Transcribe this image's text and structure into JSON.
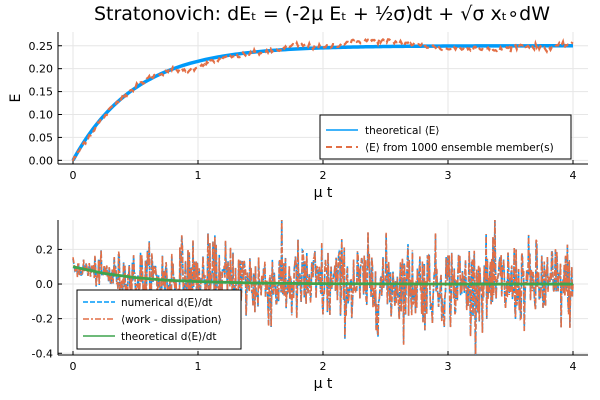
{
  "title": "Stratonovich: dEₜ = (-2μ Eₜ + ½σ)dt + √σ xₜ∘dW",
  "colors": {
    "blue": "#009af9",
    "orange": "#e26f46",
    "green": "#3da44d",
    "grid": "#e6e6e6"
  },
  "chart_data": [
    {
      "type": "line",
      "xlabel": "μ t",
      "ylabel": "E",
      "xlim": [
        -0.12,
        4.12
      ],
      "ylim": [
        -0.008,
        0.28
      ],
      "xticks": [
        0,
        1,
        2,
        3,
        4
      ],
      "xtick_labels": [
        "0",
        "1",
        "2",
        "3",
        "4"
      ],
      "yticks": [
        0,
        0.05,
        0.1,
        0.15,
        0.2,
        0.25
      ],
      "ytick_labels": [
        "0.00",
        "0.05",
        "0.10",
        "0.15",
        "0.20",
        "0.25"
      ],
      "grid": true,
      "legend_position": "bottom-right",
      "x": [
        0,
        0.1,
        0.2,
        0.3,
        0.4,
        0.5,
        0.6,
        0.7,
        0.8,
        0.9,
        1.0,
        1.2,
        1.4,
        1.6,
        1.8,
        2.0,
        2.2,
        2.4,
        2.6,
        2.8,
        3.0,
        3.2,
        3.4,
        3.6,
        3.8,
        4.0
      ],
      "series": [
        {
          "name": "theoretical ⟨E⟩",
          "style": "solid",
          "color": "#009af9",
          "values": [
            0,
            0.045,
            0.082,
            0.113,
            0.137,
            0.158,
            0.174,
            0.188,
            0.199,
            0.208,
            0.216,
            0.227,
            0.235,
            0.24,
            0.244,
            0.246,
            0.247,
            0.248,
            0.249,
            0.249,
            0.25,
            0.25,
            0.25,
            0.25,
            0.25,
            0.25
          ]
        },
        {
          "name": "⟨E⟩ from 1000 ensemble member(s)",
          "style": "dashed",
          "color": "#e26f46",
          "values": [
            0,
            0.043,
            0.08,
            0.112,
            0.14,
            0.16,
            0.178,
            0.19,
            0.2,
            0.195,
            0.205,
            0.222,
            0.232,
            0.238,
            0.252,
            0.245,
            0.258,
            0.262,
            0.258,
            0.25,
            0.243,
            0.247,
            0.24,
            0.252,
            0.244,
            0.255
          ]
        }
      ]
    },
    {
      "type": "line",
      "xlabel": "μ t",
      "ylabel": "",
      "xlim": [
        -0.12,
        4.12
      ],
      "ylim": [
        -0.41,
        0.37
      ],
      "xticks": [
        0,
        1,
        2,
        3,
        4
      ],
      "xtick_labels": [
        "0",
        "1",
        "2",
        "3",
        "4"
      ],
      "yticks": [
        -0.4,
        -0.2,
        0,
        0.2
      ],
      "ytick_labels": [
        "-0.4",
        "-0.2",
        "0.0",
        "0.2"
      ],
      "grid": true,
      "legend_position": "bottom-left",
      "series": [
        {
          "name": "numerical d⟨E⟩/dt",
          "style": "dashed",
          "color": "#009af9",
          "noise_amplitude": 0.12,
          "values_approx": "noisy signal around the theoretical curve, ranging roughly -0.38 to 0.35"
        },
        {
          "name": "⟨work - dissipation⟩",
          "style": "dashdot",
          "color": "#e26f46",
          "noise_amplitude": 0.12,
          "values_approx": "nearly identical to numerical d⟨E⟩/dt"
        },
        {
          "name": "theoretical d⟨E⟩/dt",
          "style": "solid",
          "color": "#3da44d",
          "x": [
            0,
            0.25,
            0.5,
            0.75,
            1.0,
            1.5,
            2.0,
            2.5,
            3.0,
            3.5,
            4.0
          ],
          "values": [
            0.1,
            0.061,
            0.037,
            0.022,
            0.014,
            0.005,
            0.002,
            0.001,
            0.0,
            0.0,
            0.0
          ]
        }
      ]
    }
  ]
}
